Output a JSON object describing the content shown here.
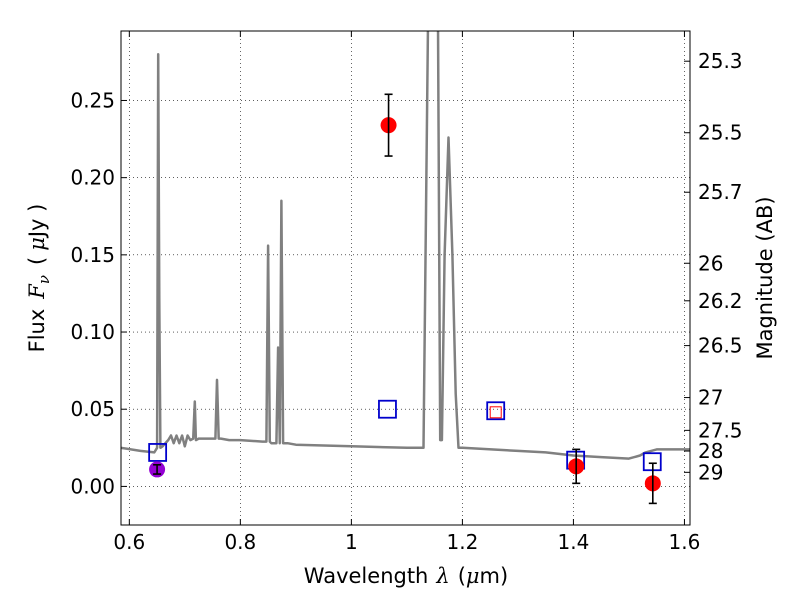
{
  "chart_data": {
    "type": "scatter",
    "xlabel_prefix": "Wavelength",
    "xlabel_symbol": "λ",
    "xlabel_unit_open": "(",
    "xlabel_unit_mu": "μ",
    "xlabel_unit_rest": "m)",
    "ylabel_prefix": "Flux",
    "ylabel_symbol": "F",
    "ylabel_sub": "ν",
    "ylabel_unit_open": "(",
    "ylabel_unit_mu": "μ",
    "ylabel_unit_rest": "Jy )",
    "y2label": "Magnitude (AB)",
    "xlim": [
      0.585,
      1.61
    ],
    "ylim": [
      -0.025,
      0.295
    ],
    "x_ticks": [
      0.6,
      0.8,
      1.0,
      1.2,
      1.4,
      1.6
    ],
    "x_tick_labels": [
      "0.6",
      "0.8",
      "1",
      "1.2",
      "1.4",
      "1.6"
    ],
    "y_ticks": [
      0.0,
      0.05,
      0.1,
      0.15,
      0.2,
      0.25
    ],
    "y_tick_labels": [
      "0.00",
      "0.05",
      "0.10",
      "0.15",
      "0.20",
      "0.25"
    ],
    "magnitude_ticks": [
      25.3,
      25.5,
      25.7,
      26,
      26.2,
      26.5,
      27,
      27.5,
      28,
      29
    ],
    "magnitude_tick_labels": [
      "25.3",
      "25.5",
      "25.7",
      "26",
      "26.2",
      "26.5",
      "27",
      "27.5",
      "28",
      "29"
    ],
    "grid": true,
    "series": [
      {
        "kind": "model_spectrum",
        "color": "#808080",
        "x": [
          0.585,
          0.62,
          0.645,
          0.65,
          0.652,
          0.654,
          0.656,
          0.66,
          0.67,
          0.675,
          0.68,
          0.685,
          0.69,
          0.695,
          0.7,
          0.705,
          0.71,
          0.715,
          0.718,
          0.72,
          0.725,
          0.74,
          0.755,
          0.758,
          0.761,
          0.765,
          0.78,
          0.8,
          0.84,
          0.847,
          0.85,
          0.853,
          0.856,
          0.86,
          0.865,
          0.868,
          0.871,
          0.874,
          0.877,
          0.88,
          0.885,
          0.9,
          1.0,
          1.1,
          1.13,
          1.138,
          1.142,
          1.15,
          1.156,
          1.16,
          1.163,
          1.168,
          1.175,
          1.182,
          1.188,
          1.193,
          1.198,
          1.2,
          1.3,
          1.35,
          1.4,
          1.45,
          1.5,
          1.52,
          1.53,
          1.55,
          1.6,
          1.61
        ],
        "y": [
          0.025,
          0.023,
          0.022,
          0.025,
          0.28,
          0.12,
          0.025,
          0.026,
          0.03,
          0.033,
          0.028,
          0.033,
          0.028,
          0.033,
          0.026,
          0.033,
          0.03,
          0.031,
          0.055,
          0.03,
          0.031,
          0.031,
          0.031,
          0.069,
          0.031,
          0.031,
          0.03,
          0.03,
          0.029,
          0.029,
          0.156,
          0.029,
          0.028,
          0.028,
          0.028,
          0.09,
          0.028,
          0.185,
          0.028,
          0.028,
          0.028,
          0.027,
          0.026,
          0.025,
          0.025,
          0.3,
          0.3,
          0.3,
          0.3,
          0.03,
          0.03,
          0.15,
          0.226,
          0.15,
          0.06,
          0.025,
          0.025,
          0.025,
          0.023,
          0.022,
          0.02,
          0.019,
          0.018,
          0.02,
          0.022,
          0.024,
          0.024,
          0.024
        ]
      },
      {
        "kind": "observed",
        "color": "#ff0000",
        "points": [
          {
            "x": 1.067,
            "y": 0.234,
            "err": 0.02
          },
          {
            "x": 1.405,
            "y": 0.013,
            "err": 0.011
          },
          {
            "x": 1.543,
            "y": 0.002,
            "err": 0.013
          }
        ]
      },
      {
        "kind": "observed",
        "color": "#9400d3",
        "points": [
          {
            "x": 0.65,
            "y": 0.011,
            "err": 0.003
          }
        ]
      },
      {
        "kind": "model_photometry",
        "color": "#0000cc",
        "points": [
          {
            "x": 0.651,
            "y": 0.022
          },
          {
            "x": 1.065,
            "y": 0.05
          },
          {
            "x": 1.26,
            "y": 0.049
          },
          {
            "x": 1.404,
            "y": 0.017
          },
          {
            "x": 1.542,
            "y": 0.016
          }
        ]
      },
      {
        "kind": "model_photometry",
        "color": "#ff0000",
        "points": [
          {
            "x": 1.26,
            "y": 0.048
          }
        ]
      }
    ]
  }
}
